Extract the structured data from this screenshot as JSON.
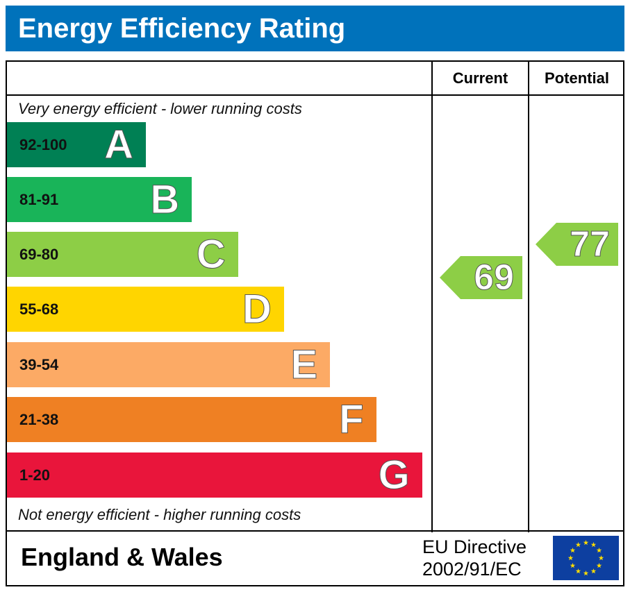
{
  "title": "Energy Efficiency Rating",
  "columns": {
    "current": "Current",
    "potential": "Potential"
  },
  "notes": {
    "top": "Very energy efficient - lower running costs",
    "bottom": "Not energy efficient - higher running costs"
  },
  "footer": {
    "region": "England & Wales",
    "directive_line1": "EU Directive",
    "directive_line2": "2002/91/EC",
    "flag_icon": "eu-flag-icon"
  },
  "chart_data": {
    "type": "bar",
    "categories": [
      "A",
      "B",
      "C",
      "D",
      "E",
      "F",
      "G"
    ],
    "ranges": [
      "92-100",
      "81-91",
      "69-80",
      "55-68",
      "39-54",
      "21-38",
      "1-20"
    ],
    "colors": [
      "#008054",
      "#19b459",
      "#8dce46",
      "#ffd500",
      "#fcaa65",
      "#ef8023",
      "#e9153b"
    ],
    "current": {
      "value": 69,
      "band": "C",
      "color": "#8dce46"
    },
    "potential": {
      "value": 77,
      "band": "C",
      "color": "#8dce46"
    }
  }
}
